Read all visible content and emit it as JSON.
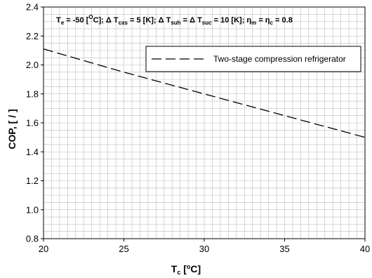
{
  "chart_data": {
    "type": "line",
    "xlabel": {
      "main": "T",
      "sub": "c",
      "open": " [",
      "sup": "o",
      "close": "C]"
    },
    "ylabel": "COP, [ / ]",
    "xlim": [
      20,
      40
    ],
    "ylim": [
      0.8,
      2.4
    ],
    "x_ticks": [
      20,
      25,
      30,
      35,
      40
    ],
    "y_ticks": [
      "0.8",
      "1.0",
      "1.2",
      "1.4",
      "1.6",
      "1.8",
      "2.0",
      "2.2",
      "2.4"
    ],
    "grid": true,
    "legend_position": "top-right",
    "series": [
      {
        "name": "Two-stage compression refrigerator",
        "style": "dashed",
        "color": "#000000",
        "x": [
          20,
          25,
          30,
          35,
          40
        ],
        "y": [
          2.11,
          1.95,
          1.8,
          1.65,
          1.5
        ]
      }
    ],
    "annotation": {
      "t1": "T",
      "t1_sub": "e",
      "t2": " = -50 [",
      "t2_sup": "O",
      "t3": "C]; Δ  T",
      "t3_sub": "cas",
      "t4": " = 5 [K]; Δ  T",
      "t4_sub": "suh",
      "t5": " =  Δ  T",
      "t5_sub": "suc",
      "t6": " = 10 [K]; η",
      "t6_sub": "m",
      "t7": " =  η",
      "t7_sub": "c",
      "t8": " = 0.8"
    }
  }
}
